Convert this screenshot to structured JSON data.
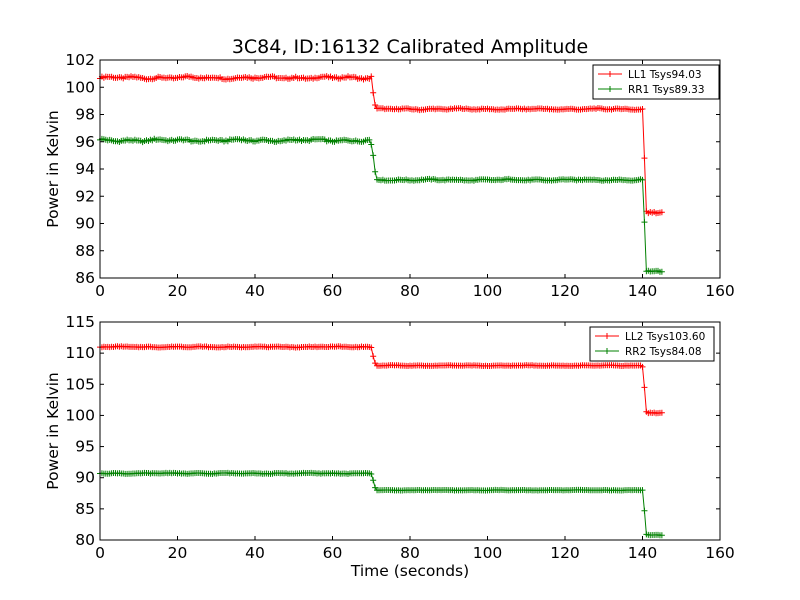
{
  "chart_data": [
    {
      "type": "line",
      "title": "3C84, ID:16132 Calibrated Amplitude",
      "xlabel": "",
      "ylabel": "Power in Kelvin",
      "xlim": [
        0,
        160
      ],
      "ylim": [
        86,
        102
      ],
      "xticks": [
        0,
        20,
        40,
        60,
        80,
        100,
        120,
        140,
        160
      ],
      "yticks": [
        86,
        88,
        90,
        92,
        94,
        96,
        98,
        100,
        102
      ],
      "legend_position": "top-right",
      "marker": "+",
      "series": [
        {
          "name": "LL1 Tsys94.03",
          "color": "#ff0000",
          "segments": [
            {
              "x": [
                0,
                70
              ],
              "level": 100.7,
              "noise": 0.15
            },
            {
              "x": [
                71,
                140
              ],
              "level": 98.4,
              "noise": 0.08
            },
            {
              "x": [
                141,
                145
              ],
              "level": 90.8,
              "noise": 0.05
            }
          ],
          "transition_points": [
            [
              70,
              100.8
            ],
            [
              70.5,
              99.6
            ],
            [
              71,
              98.7
            ],
            [
              140,
              98.4
            ],
            [
              140.5,
              94.8
            ],
            [
              141,
              90.9
            ]
          ]
        },
        {
          "name": "RR1 Tsys89.33",
          "color": "#008000",
          "segments": [
            {
              "x": [
                0,
                70
              ],
              "level": 96.1,
              "noise": 0.15
            },
            {
              "x": [
                71,
                140
              ],
              "level": 93.2,
              "noise": 0.08
            },
            {
              "x": [
                141,
                145
              ],
              "level": 86.5,
              "noise": 0.05
            }
          ],
          "transition_points": [
            [
              70,
              95.8
            ],
            [
              70.5,
              95.0
            ],
            [
              71,
              93.8
            ],
            [
              140,
              93.2
            ],
            [
              140.5,
              90.1
            ],
            [
              141,
              86.5
            ]
          ]
        }
      ]
    },
    {
      "type": "line",
      "title": "",
      "xlabel": "Time (seconds)",
      "ylabel": "Power in Kelvin",
      "xlim": [
        0,
        160
      ],
      "ylim": [
        80,
        115
      ],
      "xticks": [
        0,
        20,
        40,
        60,
        80,
        100,
        120,
        140,
        160
      ],
      "yticks": [
        80,
        85,
        90,
        95,
        100,
        105,
        110,
        115
      ],
      "legend_position": "top-right",
      "marker": "+",
      "series": [
        {
          "name": "LL2 Tsys103.60",
          "color": "#ff0000",
          "segments": [
            {
              "x": [
                0,
                70
              ],
              "level": 111.0,
              "noise": 0.12
            },
            {
              "x": [
                71,
                140
              ],
              "level": 108.0,
              "noise": 0.08
            },
            {
              "x": [
                141,
                145
              ],
              "level": 100.4,
              "noise": 0.05
            }
          ],
          "transition_points": [
            [
              70,
              110.9
            ],
            [
              70.5,
              109.5
            ],
            [
              71,
              108.4
            ],
            [
              140,
              107.8
            ],
            [
              140.5,
              104.5
            ],
            [
              141,
              100.6
            ]
          ]
        },
        {
          "name": "RR2 Tsys84.08",
          "color": "#008000",
          "segments": [
            {
              "x": [
                0,
                70
              ],
              "level": 90.7,
              "noise": 0.12
            },
            {
              "x": [
                71,
                140
              ],
              "level": 88.0,
              "noise": 0.06
            },
            {
              "x": [
                141,
                145
              ],
              "level": 80.8,
              "noise": 0.04
            }
          ],
          "transition_points": [
            [
              70,
              90.6
            ],
            [
              70.5,
              89.6
            ],
            [
              71,
              88.4
            ],
            [
              140,
              88.0
            ],
            [
              140.5,
              84.7
            ],
            [
              141,
              80.9
            ]
          ]
        }
      ]
    }
  ]
}
